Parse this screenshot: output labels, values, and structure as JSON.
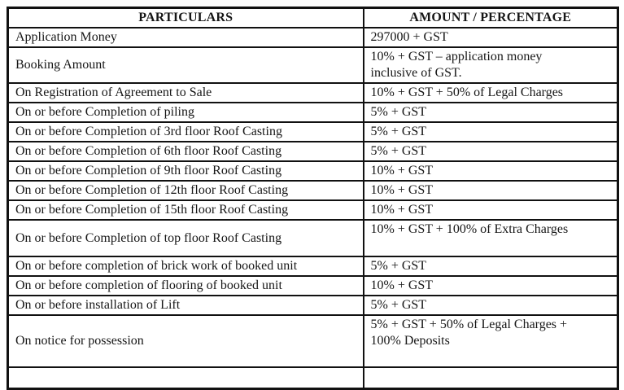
{
  "table": {
    "headers": {
      "particulars": "PARTICULARS",
      "amount": "AMOUNT / PERCENTAGE"
    },
    "rows": [
      {
        "particulars": "Application Money",
        "amount": "297000 + GST"
      },
      {
        "particulars": "Booking Amount",
        "amount": "10% + GST – application money\ninclusive of GST."
      },
      {
        "particulars": "On Registration of Agreement to Sale",
        "amount": "10% + GST + 50% of Legal Charges"
      },
      {
        "particulars": "On or before Completion of piling",
        "amount": "5% + GST"
      },
      {
        "particulars": "On or before Completion of 3rd floor Roof Casting",
        "amount": "5% + GST"
      },
      {
        "particulars": "On or before Completion of 6th floor Roof Casting",
        "amount": "5% + GST"
      },
      {
        "particulars": "On or before Completion of 9th floor Roof Casting",
        "amount": "10% + GST"
      },
      {
        "particulars": "On or before Completion of 12th floor Roof Casting",
        "amount": "10% + GST"
      },
      {
        "particulars": "On or before Completion of 15th floor Roof Casting",
        "amount": "10% + GST"
      },
      {
        "particulars": "On or before Completion of top floor Roof Casting",
        "amount": "10% + GST + 100% of Extra Charges"
      },
      {
        "particulars": "On or before completion of brick work of booked unit",
        "amount": "5% + GST"
      },
      {
        "particulars": "On or before completion of flooring of booked unit",
        "amount": "10% + GST"
      },
      {
        "particulars": "On or before installation of Lift",
        "amount": "5% + GST"
      },
      {
        "particulars": "On notice for possession",
        "amount": "5% + GST + 50% of Legal Charges +\n100% Deposits"
      },
      {
        "particulars": "",
        "amount": ""
      }
    ]
  }
}
